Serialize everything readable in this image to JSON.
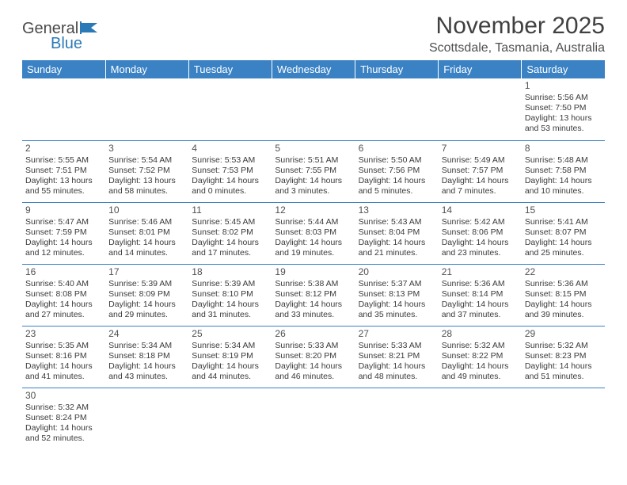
{
  "logo": {
    "part1": "General",
    "part2": "Blue"
  },
  "title": "November 2025",
  "location": "Scottsdale, Tasmania, Australia",
  "colors": {
    "header_bg": "#3a82c4",
    "header_text": "#ffffff",
    "body_text": "#3a3a3a",
    "divider": "#3a82c4",
    "blank_bg": "#f0f0f0"
  },
  "weekdays": [
    "Sunday",
    "Monday",
    "Tuesday",
    "Wednesday",
    "Thursday",
    "Friday",
    "Saturday"
  ],
  "weeks": [
    [
      null,
      null,
      null,
      null,
      null,
      null,
      {
        "n": "1",
        "sunrise": "Sunrise: 5:56 AM",
        "sunset": "Sunset: 7:50 PM",
        "daylight": "Daylight: 13 hours and 53 minutes."
      }
    ],
    [
      {
        "n": "2",
        "sunrise": "Sunrise: 5:55 AM",
        "sunset": "Sunset: 7:51 PM",
        "daylight": "Daylight: 13 hours and 55 minutes."
      },
      {
        "n": "3",
        "sunrise": "Sunrise: 5:54 AM",
        "sunset": "Sunset: 7:52 PM",
        "daylight": "Daylight: 13 hours and 58 minutes."
      },
      {
        "n": "4",
        "sunrise": "Sunrise: 5:53 AM",
        "sunset": "Sunset: 7:53 PM",
        "daylight": "Daylight: 14 hours and 0 minutes."
      },
      {
        "n": "5",
        "sunrise": "Sunrise: 5:51 AM",
        "sunset": "Sunset: 7:55 PM",
        "daylight": "Daylight: 14 hours and 3 minutes."
      },
      {
        "n": "6",
        "sunrise": "Sunrise: 5:50 AM",
        "sunset": "Sunset: 7:56 PM",
        "daylight": "Daylight: 14 hours and 5 minutes."
      },
      {
        "n": "7",
        "sunrise": "Sunrise: 5:49 AM",
        "sunset": "Sunset: 7:57 PM",
        "daylight": "Daylight: 14 hours and 7 minutes."
      },
      {
        "n": "8",
        "sunrise": "Sunrise: 5:48 AM",
        "sunset": "Sunset: 7:58 PM",
        "daylight": "Daylight: 14 hours and 10 minutes."
      }
    ],
    [
      {
        "n": "9",
        "sunrise": "Sunrise: 5:47 AM",
        "sunset": "Sunset: 7:59 PM",
        "daylight": "Daylight: 14 hours and 12 minutes."
      },
      {
        "n": "10",
        "sunrise": "Sunrise: 5:46 AM",
        "sunset": "Sunset: 8:01 PM",
        "daylight": "Daylight: 14 hours and 14 minutes."
      },
      {
        "n": "11",
        "sunrise": "Sunrise: 5:45 AM",
        "sunset": "Sunset: 8:02 PM",
        "daylight": "Daylight: 14 hours and 17 minutes."
      },
      {
        "n": "12",
        "sunrise": "Sunrise: 5:44 AM",
        "sunset": "Sunset: 8:03 PM",
        "daylight": "Daylight: 14 hours and 19 minutes."
      },
      {
        "n": "13",
        "sunrise": "Sunrise: 5:43 AM",
        "sunset": "Sunset: 8:04 PM",
        "daylight": "Daylight: 14 hours and 21 minutes."
      },
      {
        "n": "14",
        "sunrise": "Sunrise: 5:42 AM",
        "sunset": "Sunset: 8:06 PM",
        "daylight": "Daylight: 14 hours and 23 minutes."
      },
      {
        "n": "15",
        "sunrise": "Sunrise: 5:41 AM",
        "sunset": "Sunset: 8:07 PM",
        "daylight": "Daylight: 14 hours and 25 minutes."
      }
    ],
    [
      {
        "n": "16",
        "sunrise": "Sunrise: 5:40 AM",
        "sunset": "Sunset: 8:08 PM",
        "daylight": "Daylight: 14 hours and 27 minutes."
      },
      {
        "n": "17",
        "sunrise": "Sunrise: 5:39 AM",
        "sunset": "Sunset: 8:09 PM",
        "daylight": "Daylight: 14 hours and 29 minutes."
      },
      {
        "n": "18",
        "sunrise": "Sunrise: 5:39 AM",
        "sunset": "Sunset: 8:10 PM",
        "daylight": "Daylight: 14 hours and 31 minutes."
      },
      {
        "n": "19",
        "sunrise": "Sunrise: 5:38 AM",
        "sunset": "Sunset: 8:12 PM",
        "daylight": "Daylight: 14 hours and 33 minutes."
      },
      {
        "n": "20",
        "sunrise": "Sunrise: 5:37 AM",
        "sunset": "Sunset: 8:13 PM",
        "daylight": "Daylight: 14 hours and 35 minutes."
      },
      {
        "n": "21",
        "sunrise": "Sunrise: 5:36 AM",
        "sunset": "Sunset: 8:14 PM",
        "daylight": "Daylight: 14 hours and 37 minutes."
      },
      {
        "n": "22",
        "sunrise": "Sunrise: 5:36 AM",
        "sunset": "Sunset: 8:15 PM",
        "daylight": "Daylight: 14 hours and 39 minutes."
      }
    ],
    [
      {
        "n": "23",
        "sunrise": "Sunrise: 5:35 AM",
        "sunset": "Sunset: 8:16 PM",
        "daylight": "Daylight: 14 hours and 41 minutes."
      },
      {
        "n": "24",
        "sunrise": "Sunrise: 5:34 AM",
        "sunset": "Sunset: 8:18 PM",
        "daylight": "Daylight: 14 hours and 43 minutes."
      },
      {
        "n": "25",
        "sunrise": "Sunrise: 5:34 AM",
        "sunset": "Sunset: 8:19 PM",
        "daylight": "Daylight: 14 hours and 44 minutes."
      },
      {
        "n": "26",
        "sunrise": "Sunrise: 5:33 AM",
        "sunset": "Sunset: 8:20 PM",
        "daylight": "Daylight: 14 hours and 46 minutes."
      },
      {
        "n": "27",
        "sunrise": "Sunrise: 5:33 AM",
        "sunset": "Sunset: 8:21 PM",
        "daylight": "Daylight: 14 hours and 48 minutes."
      },
      {
        "n": "28",
        "sunrise": "Sunrise: 5:32 AM",
        "sunset": "Sunset: 8:22 PM",
        "daylight": "Daylight: 14 hours and 49 minutes."
      },
      {
        "n": "29",
        "sunrise": "Sunrise: 5:32 AM",
        "sunset": "Sunset: 8:23 PM",
        "daylight": "Daylight: 14 hours and 51 minutes."
      }
    ],
    [
      {
        "n": "30",
        "sunrise": "Sunrise: 5:32 AM",
        "sunset": "Sunset: 8:24 PM",
        "daylight": "Daylight: 14 hours and 52 minutes."
      },
      null,
      null,
      null,
      null,
      null,
      null
    ]
  ]
}
